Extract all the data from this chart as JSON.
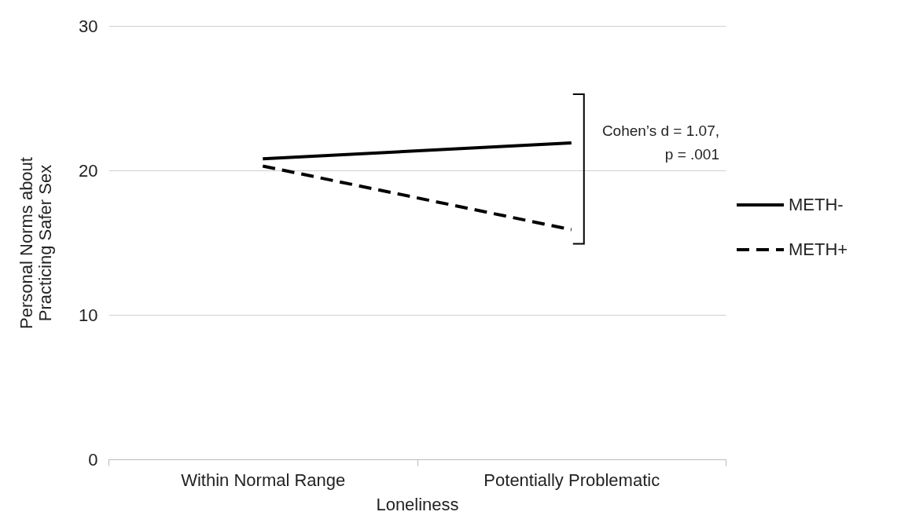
{
  "chart_data": {
    "type": "line",
    "xlabel": "Loneliness",
    "ylabel": "Personal Norms about Practicing Safer Sex",
    "categories": [
      "Within Normal Range",
      "Potentially Problematic"
    ],
    "series": [
      {
        "name": "METH-",
        "color": "#000000",
        "line_style": "solid",
        "values": [
          20.8,
          21.9
        ]
      },
      {
        "name": "METH+",
        "color": "#000000",
        "line_style": "dashed",
        "values": [
          20.3,
          15.9
        ]
      }
    ],
    "ylim": [
      0,
      30
    ],
    "yticks": [
      0,
      10,
      20,
      30
    ],
    "grid": "y",
    "legend": "right",
    "marker": "none",
    "annotations": [
      "Cohen’s d = 1.07,",
      "p = .001"
    ]
  }
}
